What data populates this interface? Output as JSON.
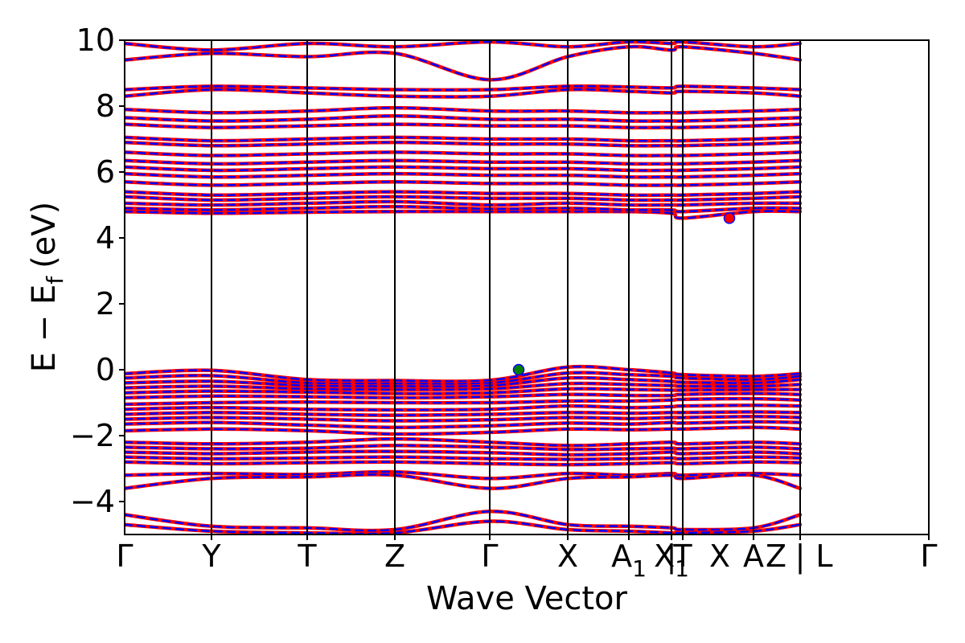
{
  "chart_data": {
    "type": "line",
    "title": "",
    "xlabel": "Wave Vector",
    "ylabel": "E − E",
    "ylabel_subscript": "f",
    "ylabel_unit": "(eV)",
    "ylim": [
      -5,
      10
    ],
    "yticks": [
      -4,
      -2,
      0,
      2,
      4,
      6,
      8,
      10
    ],
    "ytick_labels": [
      "−4",
      "−2",
      "0",
      "2",
      "4",
      "6",
      "8",
      "10"
    ],
    "xlim": [
      0,
      1
    ],
    "kpath": [
      {
        "label": "Γ",
        "x": 0.0
      },
      {
        "label": "Y",
        "x": 0.108
      },
      {
        "label": "T",
        "x": 0.227
      },
      {
        "label": "Z",
        "x": 0.336
      },
      {
        "label": "Γ",
        "x": 0.454
      },
      {
        "label": "X",
        "x": 0.551
      },
      {
        "label": "A",
        "x": 0.627,
        "sub": "1"
      },
      {
        "label": "X",
        "x": 0.68,
        "sub": "1"
      },
      {
        "label": "|",
        "x": 0.68
      },
      {
        "label": "T",
        "x": 0.694
      },
      {
        "label": "X",
        "x": 0.74
      },
      {
        "label": "A",
        "x": 0.782
      },
      {
        "label": "Z",
        "x": 0.81
      },
      {
        "label": "|",
        "x": 0.84
      },
      {
        "label": "L",
        "x": 0.87
      },
      {
        "label": "Γ",
        "x": 1.0
      }
    ],
    "vlines": [
      0.108,
      0.227,
      0.336,
      0.454,
      0.551,
      0.627,
      0.68,
      0.694,
      0.782,
      0.84,
      1.0
    ],
    "series": [
      {
        "color": "#ff0000",
        "style": "solid"
      },
      {
        "color": "#0000ff",
        "style": "dashed"
      }
    ],
    "bands_valence": [
      [
        -0.12,
        -0.02,
        -0.3,
        -0.33,
        -0.32,
        0.08,
        0.0,
        -0.1,
        -0.15,
        -0.2,
        -0.12
      ],
      [
        -0.25,
        -0.18,
        -0.4,
        -0.42,
        -0.4,
        -0.1,
        -0.15,
        -0.2,
        -0.25,
        -0.3,
        -0.2
      ],
      [
        -0.4,
        -0.35,
        -0.48,
        -0.5,
        -0.48,
        -0.25,
        -0.3,
        -0.35,
        -0.38,
        -0.4,
        -0.3
      ],
      [
        -0.55,
        -0.5,
        -0.58,
        -0.6,
        -0.58,
        -0.42,
        -0.45,
        -0.48,
        -0.5,
        -0.5,
        -0.45
      ],
      [
        -0.7,
        -0.65,
        -0.68,
        -0.72,
        -0.7,
        -0.58,
        -0.6,
        -0.62,
        -0.62,
        -0.6,
        -0.6
      ],
      [
        -0.85,
        -0.8,
        -0.82,
        -0.85,
        -0.82,
        -0.75,
        -0.78,
        -0.78,
        -0.75,
        -0.72,
        -0.75
      ],
      [
        -1.05,
        -1.0,
        -0.98,
        -1.0,
        -1.0,
        -0.95,
        -0.95,
        -0.92,
        -0.9,
        -0.88,
        -0.92
      ],
      [
        -1.2,
        -1.15,
        -1.2,
        -1.22,
        -1.2,
        -1.1,
        -1.15,
        -1.12,
        -1.1,
        -1.08,
        -1.1
      ],
      [
        -1.35,
        -1.3,
        -1.35,
        -1.38,
        -1.35,
        -1.3,
        -1.32,
        -1.3,
        -1.3,
        -1.28,
        -1.3
      ],
      [
        -1.5,
        -1.45,
        -1.5,
        -1.55,
        -1.52,
        -1.45,
        -1.48,
        -1.45,
        -1.45,
        -1.42,
        -1.45
      ],
      [
        -1.65,
        -1.6,
        -1.68,
        -1.75,
        -1.7,
        -1.62,
        -1.65,
        -1.6,
        -1.62,
        -1.58,
        -1.6
      ],
      [
        -1.85,
        -1.8,
        -1.85,
        -1.95,
        -1.9,
        -1.8,
        -1.82,
        -1.8,
        -1.8,
        -1.75,
        -1.8
      ],
      [
        -2.2,
        -2.25,
        -2.2,
        -2.1,
        -2.2,
        -2.3,
        -2.25,
        -2.2,
        -2.25,
        -2.2,
        -2.25
      ],
      [
        -2.35,
        -2.4,
        -2.38,
        -2.3,
        -2.35,
        -2.42,
        -2.4,
        -2.38,
        -2.4,
        -2.35,
        -2.4
      ],
      [
        -2.5,
        -2.55,
        -2.5,
        -2.48,
        -2.52,
        -2.58,
        -2.55,
        -2.5,
        -2.55,
        -2.5,
        -2.55
      ],
      [
        -2.65,
        -2.7,
        -2.68,
        -2.65,
        -2.7,
        -2.72,
        -2.7,
        -2.68,
        -2.7,
        -2.65,
        -2.68
      ],
      [
        -2.8,
        -2.85,
        -2.82,
        -2.8,
        -2.85,
        -2.88,
        -2.85,
        -2.82,
        -2.85,
        -2.8,
        -2.82
      ],
      [
        -3.2,
        -3.15,
        -3.18,
        -3.1,
        -3.3,
        -3.15,
        -3.2,
        -3.15,
        -3.2,
        -3.15,
        -3.2
      ],
      [
        -3.6,
        -3.3,
        -3.25,
        -3.2,
        -3.6,
        -3.3,
        -3.25,
        -3.2,
        -3.3,
        -3.2,
        -3.6
      ],
      [
        -4.4,
        -4.75,
        -4.8,
        -4.85,
        -4.3,
        -4.7,
        -4.75,
        -4.8,
        -4.85,
        -4.8,
        -4.4
      ],
      [
        -4.7,
        -4.9,
        -4.95,
        -4.95,
        -4.6,
        -4.85,
        -4.9,
        -4.95,
        -4.95,
        -4.9,
        -4.7
      ]
    ],
    "bands_conduction": [
      [
        4.8,
        4.75,
        4.78,
        4.8,
        4.8,
        4.8,
        4.8,
        4.75,
        4.6,
        4.8,
        4.8
      ],
      [
        4.9,
        4.85,
        4.9,
        4.95,
        4.88,
        4.9,
        4.85,
        4.85,
        4.8,
        4.9,
        4.9
      ],
      [
        5.05,
        5.0,
        5.05,
        5.1,
        5.0,
        5.05,
        5.0,
        5.0,
        5.0,
        5.05,
        5.05
      ],
      [
        5.25,
        5.15,
        5.2,
        5.25,
        5.2,
        5.2,
        5.15,
        5.15,
        5.15,
        5.2,
        5.25
      ],
      [
        5.4,
        5.3,
        5.35,
        5.4,
        5.35,
        5.35,
        5.3,
        5.3,
        5.3,
        5.35,
        5.4
      ],
      [
        5.7,
        5.6,
        5.65,
        5.7,
        5.65,
        5.65,
        5.6,
        5.6,
        5.6,
        5.65,
        5.7
      ],
      [
        5.95,
        5.85,
        5.9,
        5.95,
        5.9,
        5.9,
        5.85,
        5.85,
        5.85,
        5.9,
        5.95
      ],
      [
        6.15,
        6.05,
        6.1,
        6.15,
        6.1,
        6.1,
        6.05,
        6.05,
        6.05,
        6.1,
        6.15
      ],
      [
        6.35,
        6.25,
        6.3,
        6.35,
        6.3,
        6.3,
        6.25,
        6.25,
        6.25,
        6.3,
        6.35
      ],
      [
        6.6,
        6.5,
        6.55,
        6.6,
        6.55,
        6.55,
        6.5,
        6.5,
        6.5,
        6.55,
        6.6
      ],
      [
        6.9,
        6.8,
        6.85,
        6.9,
        6.85,
        6.85,
        6.8,
        6.8,
        6.8,
        6.85,
        6.9
      ],
      [
        7.05,
        6.95,
        7.0,
        7.05,
        7.0,
        7.0,
        6.95,
        6.95,
        6.95,
        7.0,
        7.05
      ],
      [
        7.45,
        7.35,
        7.4,
        7.45,
        7.4,
        7.4,
        7.35,
        7.35,
        7.35,
        7.4,
        7.45
      ],
      [
        7.65,
        7.55,
        7.6,
        7.7,
        7.6,
        7.6,
        7.55,
        7.55,
        7.55,
        7.6,
        7.65
      ],
      [
        7.9,
        7.8,
        7.85,
        7.95,
        7.85,
        7.85,
        7.8,
        7.8,
        7.8,
        7.85,
        7.9
      ],
      [
        8.3,
        8.5,
        8.4,
        8.3,
        8.3,
        8.5,
        8.45,
        8.4,
        8.45,
        8.4,
        8.3
      ],
      [
        8.5,
        8.6,
        8.55,
        8.5,
        8.5,
        8.6,
        8.58,
        8.55,
        8.6,
        8.55,
        8.5
      ],
      [
        9.4,
        9.6,
        9.5,
        9.6,
        8.8,
        9.5,
        9.8,
        9.7,
        9.8,
        9.6,
        9.4
      ],
      [
        9.9,
        9.7,
        9.9,
        9.8,
        9.95,
        9.8,
        9.95,
        9.9,
        9.95,
        9.8,
        9.9
      ]
    ],
    "vbm": {
      "x": 0.49,
      "y": 0.0,
      "color": "#008000"
    },
    "cbm": {
      "x": 0.752,
      "y": 4.6,
      "color": "#ff0000"
    }
  }
}
